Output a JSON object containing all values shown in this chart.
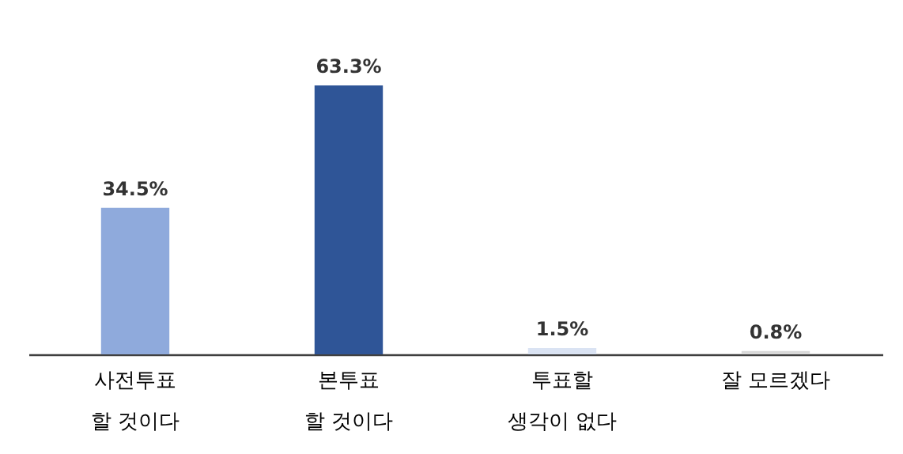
{
  "chart_data": {
    "type": "bar",
    "categories": [
      "사전투표\n할 것이다",
      "본투표\n할 것이다",
      "투표할\n생각이 없다",
      "잘 모르겠다"
    ],
    "values": [
      34.5,
      63.3,
      1.5,
      0.8
    ],
    "colors": [
      "#8faadc",
      "#2f5597",
      "#dae3f3",
      "#d9d9d9"
    ],
    "value_labels": [
      "34.5%",
      "63.3%",
      "1.5%",
      "0.8%"
    ],
    "grid": false,
    "tick_labels": "x"
  }
}
